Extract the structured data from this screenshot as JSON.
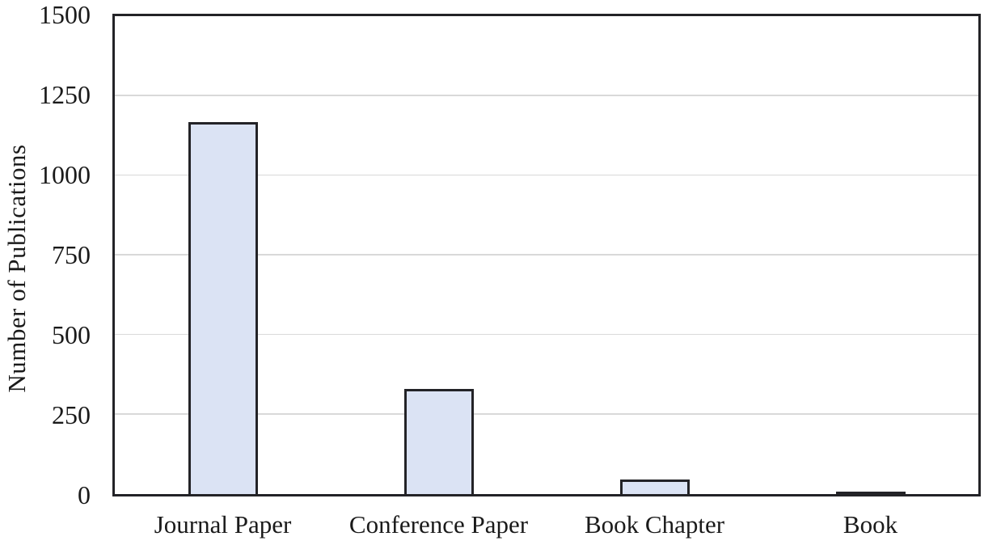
{
  "chart_data": {
    "type": "bar",
    "title": "",
    "xlabel": "",
    "ylabel": "Number of Publications",
    "categories": [
      "Journal Paper",
      "Conference Paper",
      "Book Chapter",
      "Book"
    ],
    "values": [
      1167,
      330,
      45,
      8
    ],
    "ylim": [
      0,
      1500
    ],
    "yticks": [
      0,
      250,
      500,
      750,
      1000,
      1250,
      1500
    ],
    "grid": "horizontal-only",
    "legend": "none",
    "colors": {
      "bar_fill": "#dbe3f4",
      "bar_border": "#232327",
      "axis_border": "#232327",
      "gridline": "#d9d9d9",
      "text": "#1a1a1a",
      "background": "#ffffff"
    }
  }
}
